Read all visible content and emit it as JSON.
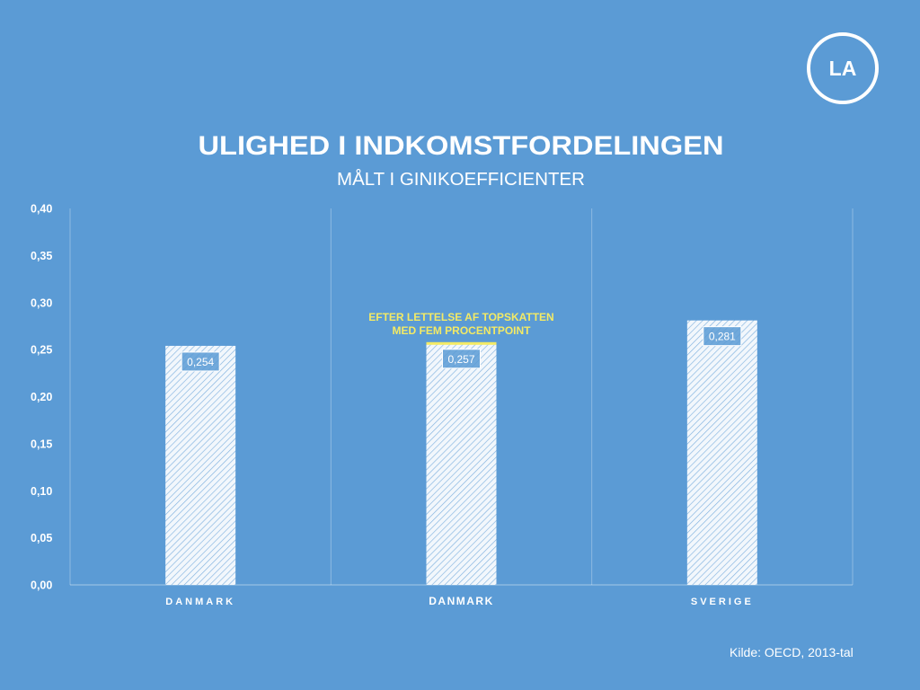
{
  "logo": {
    "text": "LA"
  },
  "colors": {
    "background": "#5b9bd5",
    "bar": "#ffffff",
    "highlight": "#f3ea65",
    "text": "#ffffff"
  },
  "chart_data": {
    "type": "bar",
    "title": "ULIGHED I INDKOMSTFORDELINGEN",
    "subtitle": "MÅLT I GINIKOEFFICIENTER",
    "categories": [
      "DANMARK",
      "DANMARK",
      "SVERIGE"
    ],
    "values": [
      0.254,
      0.257,
      0.281
    ],
    "value_labels": [
      "0,254",
      "0,257",
      "0,281"
    ],
    "xlabel": "",
    "ylabel": "",
    "ylim": [
      0,
      0.4
    ],
    "yticks": [
      0,
      0.05,
      0.1,
      0.15,
      0.2,
      0.25,
      0.3,
      0.35,
      0.4
    ],
    "ytick_labels": [
      "0,00",
      "0,05",
      "0,10",
      "0,15",
      "0,20",
      "0,25",
      "0,30",
      "0,35",
      "0,40"
    ],
    "highlight_index": 1,
    "annotation": {
      "category_index": 1,
      "lines": [
        "EFTER LETTELSE AF TOPSKATTEN",
        "MED FEM PROCENTPOINT"
      ]
    },
    "source": "Kilde: OECD, 2013-tal"
  }
}
